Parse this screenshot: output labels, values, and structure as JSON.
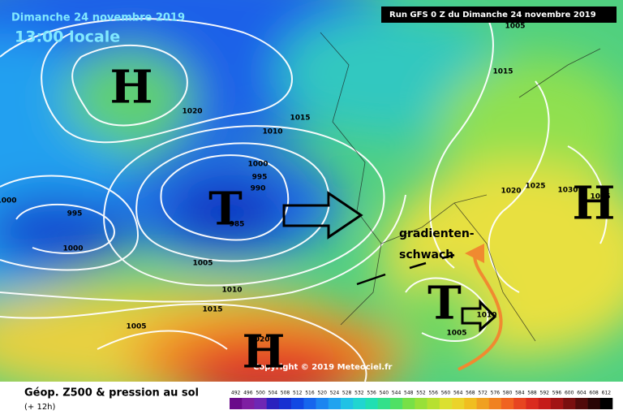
{
  "header": {
    "date": "Dimanche 24 novembre 2019",
    "time": "13:00 locale",
    "run": "Run GFS 0 Z du Dimanche 24 novembre 2019"
  },
  "isobar_labels": [
    "1005",
    "1015",
    "1020",
    "1015",
    "1010",
    "1000",
    "995",
    "990",
    "985",
    "995",
    "1000",
    "1000",
    "1005",
    "1010",
    "1015",
    "1005",
    "1020",
    "1020",
    "1025",
    "1030",
    "1005",
    "1010",
    "1015"
  ],
  "pressure_systems": [
    "H",
    "H",
    "H",
    "T",
    "T"
  ],
  "annotation": {
    "line1": "gradienten-",
    "line2": "schwach"
  },
  "copyright": "Copyright © 2019 Meteociel.fr",
  "legend": {
    "title": "Géop. Z500 & pression au sol",
    "subtitle": "(+ 12h)",
    "values": [
      492,
      496,
      500,
      504,
      508,
      512,
      516,
      520,
      524,
      528,
      532,
      536,
      540,
      544,
      548,
      552,
      556,
      560,
      564,
      568,
      572,
      576,
      580,
      584,
      588,
      592,
      596,
      600,
      604,
      608,
      612
    ]
  }
}
